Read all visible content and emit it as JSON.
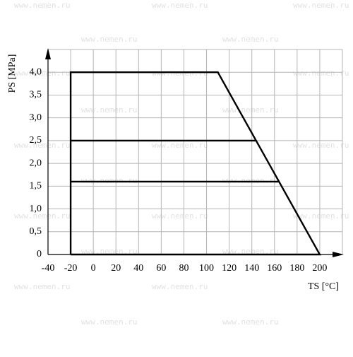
{
  "chart_data": {
    "type": "line",
    "xlabel": "TS [°C]",
    "ylabel": "PS [MPa]",
    "watermark": "www.nemen.ru",
    "xlim": [
      -40,
      220
    ],
    "ylim": [
      0,
      4.5
    ],
    "xticks": [
      -40,
      -20,
      0,
      20,
      40,
      60,
      80,
      100,
      120,
      140,
      160,
      180,
      200
    ],
    "yticks": [
      0,
      {
        "value": 0.5,
        "label": "0,5"
      },
      {
        "value": 1,
        "label": "1,0"
      },
      {
        "value": 1.5,
        "label": "1,5"
      },
      {
        "value": 2,
        "label": "2,0"
      },
      {
        "value": 2.5,
        "label": "2,5"
      },
      {
        "value": 3,
        "label": "3,0"
      },
      {
        "value": 3.5,
        "label": "3,5"
      },
      {
        "value": 4,
        "label": "4,0"
      }
    ],
    "grid": true,
    "series": [
      {
        "color": "#000000",
        "x": [
          -20,
          -20,
          110,
          200,
          -20
        ],
        "values": [
          0,
          4,
          4,
          0,
          0
        ]
      },
      {
        "color": "#000000",
        "x": [
          -20,
          143.75
        ],
        "values": [
          2.5,
          2.5
        ]
      },
      {
        "color": "#000000",
        "x": [
          -20,
          164
        ],
        "values": [
          1.6,
          1.6
        ]
      }
    ]
  }
}
